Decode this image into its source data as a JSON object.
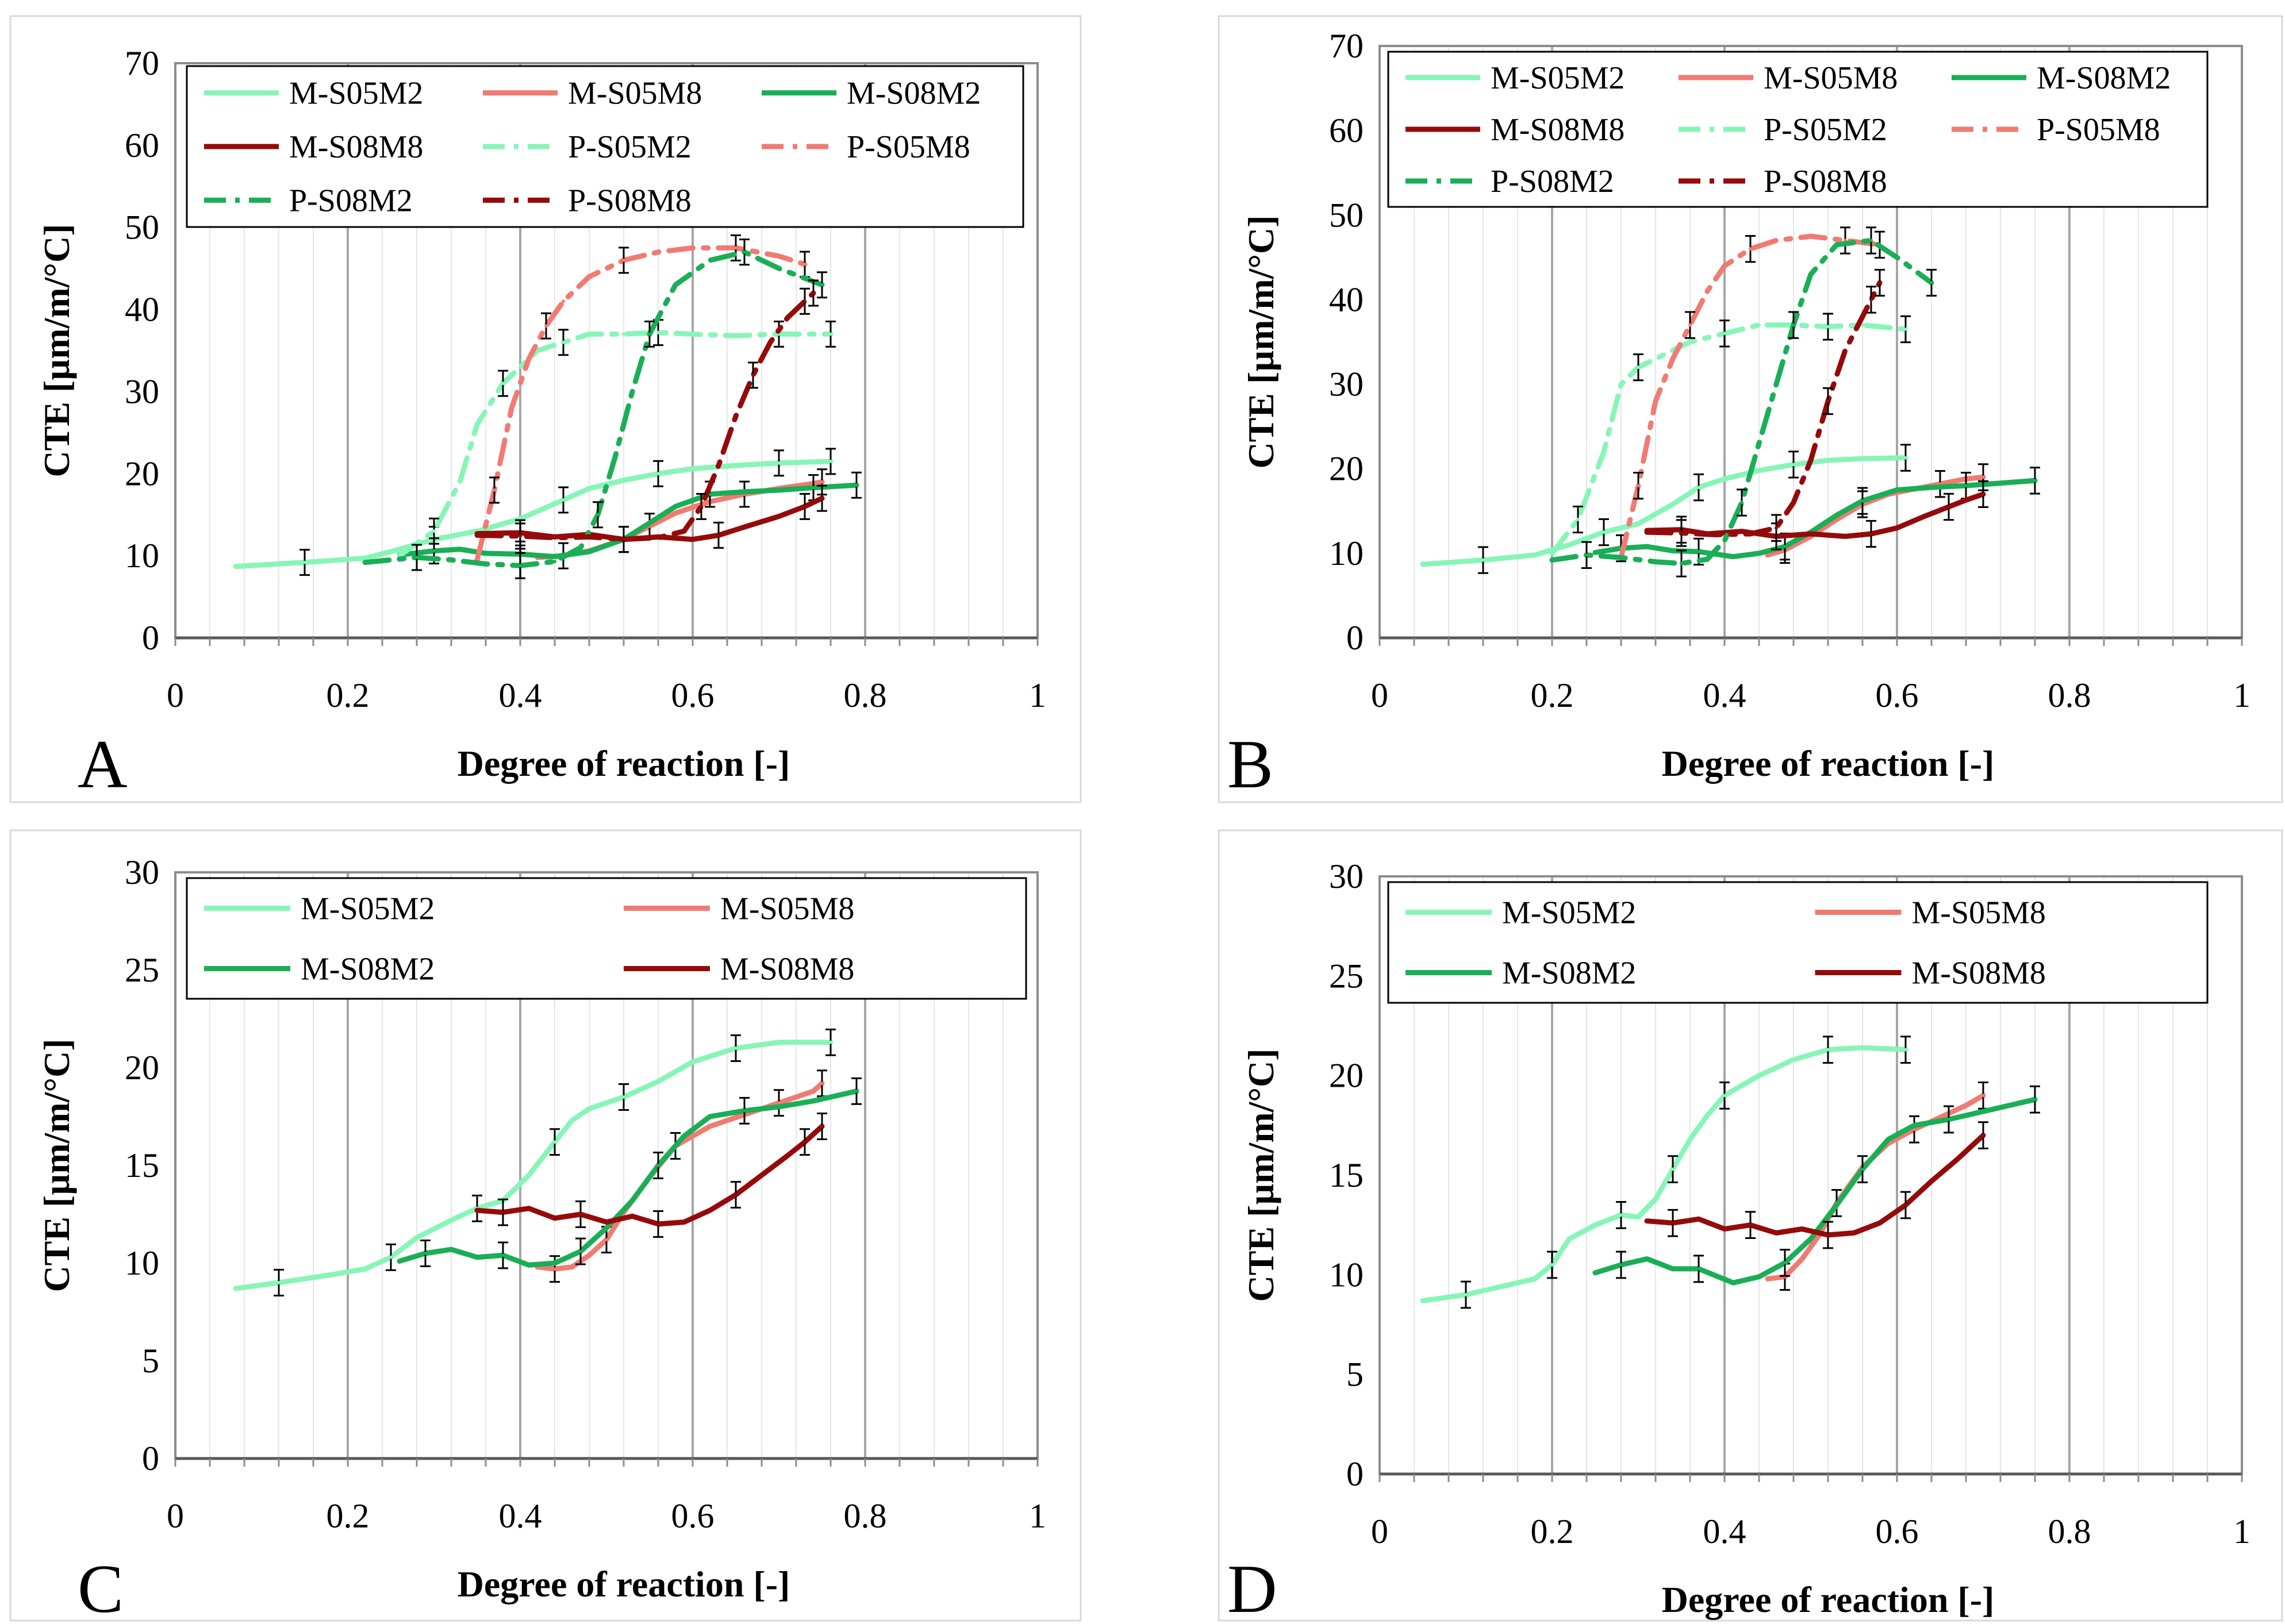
{
  "figure_title": "",
  "series_styles": {
    "M-S05M2": {
      "color": "#88F5B8",
      "dash": "solid"
    },
    "M-S05M8": {
      "color": "#F07B72",
      "dash": "solid"
    },
    "M-S08M2": {
      "color": "#1AAE56",
      "dash": "solid"
    },
    "M-S08M8": {
      "color": "#950A0A",
      "dash": "solid"
    },
    "P-S05M2": {
      "color": "#88F5B8",
      "dash": "dashdot"
    },
    "P-S05M8": {
      "color": "#F07B72",
      "dash": "dashdot"
    },
    "P-S08M2": {
      "color": "#1AAE56",
      "dash": "dashdot"
    },
    "P-S08M8": {
      "color": "#950A0A",
      "dash": "dashdot"
    }
  },
  "chart_data": [
    {
      "panel": "A",
      "type": "line",
      "xlabel": "Degree of reaction [-]",
      "ylabel": "CTE [µm/m/°C]",
      "xlim": [
        0,
        1
      ],
      "ylim": [
        0,
        70
      ],
      "x_ticks": [
        "0",
        "0.2",
        "0.4",
        "0.6",
        "0.8",
        "1"
      ],
      "y_ticks": [
        "0",
        "10",
        "20",
        "30",
        "40",
        "50",
        "60",
        "70"
      ],
      "legend": [
        "M-S05M2",
        "M-S05M8",
        "M-S08M2",
        "M-S08M8",
        "P-S05M2",
        "P-S05M8",
        "P-S08M2",
        "P-S08M8"
      ],
      "series": [
        {
          "name": "M-S05M2",
          "x": [
            0.07,
            0.15,
            0.22,
            0.25,
            0.3,
            0.35,
            0.4,
            0.45,
            0.48,
            0.52,
            0.56,
            0.6,
            0.65,
            0.7,
            0.76
          ],
          "y": [
            8.7,
            9.2,
            9.7,
            10.5,
            12.0,
            13.0,
            14.5,
            16.8,
            18.2,
            19.2,
            20.0,
            20.6,
            21.0,
            21.3,
            21.5
          ]
        },
        {
          "name": "M-S05M8",
          "x": [
            0.42,
            0.45,
            0.48,
            0.52,
            0.55,
            0.58,
            0.62,
            0.66,
            0.7,
            0.74,
            0.75
          ],
          "y": [
            9.8,
            10.0,
            10.6,
            12.0,
            13.6,
            15.2,
            16.6,
            17.5,
            18.2,
            18.8,
            19.0
          ]
        },
        {
          "name": "M-S08M2",
          "x": [
            0.26,
            0.3,
            0.33,
            0.36,
            0.4,
            0.44,
            0.48,
            0.52,
            0.55,
            0.58,
            0.62,
            0.66,
            0.7,
            0.74,
            0.79
          ],
          "y": [
            10.1,
            10.6,
            10.8,
            10.3,
            10.2,
            9.9,
            10.5,
            12.0,
            14.0,
            16.0,
            17.5,
            17.8,
            18.0,
            18.3,
            18.6
          ]
        },
        {
          "name": "M-S08M8",
          "x": [
            0.35,
            0.4,
            0.44,
            0.48,
            0.52,
            0.56,
            0.6,
            0.63,
            0.66,
            0.7,
            0.73,
            0.75
          ],
          "y": [
            12.7,
            12.8,
            12.3,
            12.6,
            12.0,
            12.3,
            12.0,
            12.5,
            13.5,
            14.8,
            16.0,
            17.0
          ]
        },
        {
          "name": "P-S05M2",
          "x": [
            0.26,
            0.3,
            0.33,
            0.35,
            0.38,
            0.4,
            0.42,
            0.45,
            0.48,
            0.52,
            0.56,
            0.6,
            0.65,
            0.7,
            0.76
          ],
          "y": [
            10.0,
            13.0,
            19.0,
            26.0,
            31.0,
            33.0,
            35.0,
            36.0,
            37.0,
            37.0,
            37.2,
            37.0,
            36.8,
            37.0,
            37.0
          ]
        },
        {
          "name": "P-S05M8",
          "x": [
            0.35,
            0.37,
            0.39,
            0.41,
            0.43,
            0.45,
            0.48,
            0.52,
            0.56,
            0.6,
            0.65,
            0.7,
            0.73
          ],
          "y": [
            9.5,
            18.0,
            28.0,
            34.0,
            38.0,
            41.0,
            44.0,
            46.0,
            47.0,
            47.5,
            47.5,
            46.5,
            45.5
          ]
        },
        {
          "name": "P-S08M2",
          "x": [
            0.22,
            0.28,
            0.32,
            0.36,
            0.4,
            0.44,
            0.47,
            0.49,
            0.51,
            0.53,
            0.55,
            0.58,
            0.62,
            0.66,
            0.7,
            0.75
          ],
          "y": [
            9.2,
            9.8,
            9.5,
            9.0,
            8.8,
            9.3,
            11.0,
            15.0,
            22.0,
            30.0,
            37.0,
            43.0,
            46.0,
            47.0,
            45.0,
            43.0
          ]
        },
        {
          "name": "P-S08M8",
          "x": [
            0.35,
            0.4,
            0.44,
            0.48,
            0.52,
            0.56,
            0.59,
            0.61,
            0.63,
            0.65,
            0.67,
            0.69,
            0.71,
            0.73,
            0.74
          ],
          "y": [
            12.5,
            12.4,
            12.2,
            12.3,
            12.0,
            12.2,
            13.0,
            16.0,
            21.0,
            27.0,
            32.0,
            36.0,
            39.0,
            41.0,
            42.0
          ]
        }
      ]
    },
    {
      "panel": "B",
      "type": "line",
      "xlabel": "Degree of reaction [-]",
      "ylabel": "CTE [µm/m/°C]",
      "xlim": [
        0,
        1
      ],
      "ylim": [
        0,
        70
      ],
      "x_ticks": [
        "0",
        "0.2",
        "0.4",
        "0.6",
        "0.8",
        "1"
      ],
      "y_ticks": [
        "0",
        "10",
        "20",
        "30",
        "40",
        "50",
        "60",
        "70"
      ],
      "legend": [
        "M-S05M2",
        "M-S05M8",
        "M-S08M2",
        "M-S08M8",
        "P-S05M2",
        "P-S05M8",
        "P-S08M2",
        "P-S08M8"
      ],
      "series": [
        {
          "name": "M-S05M2",
          "x": [
            0.05,
            0.12,
            0.18,
            0.22,
            0.26,
            0.3,
            0.34,
            0.37,
            0.4,
            0.44,
            0.48,
            0.52,
            0.56,
            0.61
          ],
          "y": [
            8.7,
            9.2,
            9.8,
            11.0,
            12.5,
            13.5,
            15.8,
            17.8,
            18.8,
            19.8,
            20.5,
            21.0,
            21.2,
            21.3
          ]
        },
        {
          "name": "M-S05M8",
          "x": [
            0.45,
            0.47,
            0.5,
            0.53,
            0.56,
            0.59,
            0.62,
            0.65,
            0.68,
            0.7
          ],
          "y": [
            9.8,
            10.4,
            12.0,
            14.0,
            15.8,
            17.0,
            17.6,
            18.2,
            18.8,
            19.0
          ]
        },
        {
          "name": "M-S08M2",
          "x": [
            0.25,
            0.28,
            0.31,
            0.34,
            0.37,
            0.41,
            0.44,
            0.47,
            0.5,
            0.53,
            0.56,
            0.6,
            0.64,
            0.68,
            0.72,
            0.76
          ],
          "y": [
            10.1,
            10.6,
            10.8,
            10.3,
            10.2,
            9.6,
            10.0,
            10.8,
            12.5,
            14.5,
            16.2,
            17.5,
            17.8,
            18.0,
            18.3,
            18.6
          ]
        },
        {
          "name": "M-S08M8",
          "x": [
            0.31,
            0.35,
            0.38,
            0.42,
            0.46,
            0.5,
            0.54,
            0.57,
            0.6,
            0.63,
            0.66,
            0.68,
            0.7
          ],
          "y": [
            12.7,
            12.8,
            12.3,
            12.6,
            12.0,
            12.3,
            12.0,
            12.3,
            13.0,
            14.3,
            15.5,
            16.3,
            17.0
          ]
        },
        {
          "name": "P-S05M2",
          "x": [
            0.2,
            0.23,
            0.26,
            0.28,
            0.3,
            0.33,
            0.36,
            0.4,
            0.44,
            0.48,
            0.52,
            0.56,
            0.61
          ],
          "y": [
            10.0,
            14.0,
            22.0,
            30.0,
            32.0,
            33.5,
            35.0,
            36.0,
            37.0,
            37.0,
            36.8,
            37.0,
            36.5
          ]
        },
        {
          "name": "P-S05M8",
          "x": [
            0.28,
            0.3,
            0.32,
            0.34,
            0.36,
            0.38,
            0.4,
            0.43,
            0.46,
            0.5,
            0.54,
            0.58
          ],
          "y": [
            9.5,
            18.0,
            28.0,
            33.0,
            37.0,
            41.0,
            44.0,
            46.0,
            47.0,
            47.5,
            47.0,
            46.5
          ]
        },
        {
          "name": "P-S08M2",
          "x": [
            0.2,
            0.24,
            0.28,
            0.32,
            0.35,
            0.38,
            0.4,
            0.42,
            0.44,
            0.46,
            0.48,
            0.5,
            0.53,
            0.57,
            0.6,
            0.64
          ],
          "y": [
            9.2,
            9.8,
            9.5,
            9.0,
            8.8,
            9.3,
            11.5,
            16.0,
            23.0,
            30.0,
            37.0,
            43.0,
            46.5,
            47.0,
            45.0,
            42.0
          ]
        },
        {
          "name": "P-S08M8",
          "x": [
            0.31,
            0.35,
            0.39,
            0.43,
            0.46,
            0.48,
            0.5,
            0.52,
            0.54,
            0.56,
            0.57,
            0.58
          ],
          "y": [
            12.5,
            12.4,
            12.2,
            12.3,
            13.0,
            16.0,
            21.0,
            28.0,
            34.0,
            38.0,
            40.0,
            42.0
          ]
        }
      ]
    },
    {
      "panel": "C",
      "type": "line",
      "xlabel": "Degree of reaction [-]",
      "ylabel": "CTE [µm/m/°C]",
      "xlim": [
        0,
        1
      ],
      "ylim": [
        0,
        30
      ],
      "x_ticks": [
        "0",
        "0.2",
        "0.4",
        "0.6",
        "0.8",
        "1"
      ],
      "y_ticks": [
        "0",
        "5",
        "10",
        "15",
        "20",
        "25",
        "30"
      ],
      "legend": [
        "M-S05M2",
        "M-S05M8",
        "M-S08M2",
        "M-S08M8"
      ],
      "series": [
        {
          "name": "M-S05M2",
          "x": [
            0.07,
            0.12,
            0.18,
            0.22,
            0.25,
            0.28,
            0.32,
            0.35,
            0.38,
            0.41,
            0.44,
            0.46,
            0.48,
            0.52,
            0.56,
            0.6,
            0.65,
            0.7,
            0.76
          ],
          "y": [
            8.7,
            9.0,
            9.4,
            9.7,
            10.3,
            11.3,
            12.2,
            12.8,
            13.2,
            14.5,
            16.2,
            17.3,
            17.9,
            18.5,
            19.3,
            20.3,
            21.0,
            21.3,
            21.3
          ]
        },
        {
          "name": "M-S05M8",
          "x": [
            0.42,
            0.44,
            0.46,
            0.48,
            0.5,
            0.52,
            0.55,
            0.58,
            0.62,
            0.66,
            0.7,
            0.74,
            0.75
          ],
          "y": [
            9.8,
            9.7,
            9.8,
            10.4,
            11.2,
            12.6,
            14.4,
            16.0,
            17.0,
            17.6,
            18.2,
            18.8,
            19.2
          ]
        },
        {
          "name": "M-S08M2",
          "x": [
            0.26,
            0.29,
            0.32,
            0.35,
            0.38,
            0.41,
            0.44,
            0.47,
            0.5,
            0.53,
            0.56,
            0.59,
            0.62,
            0.66,
            0.7,
            0.74,
            0.79
          ],
          "y": [
            10.1,
            10.5,
            10.7,
            10.3,
            10.4,
            9.9,
            10.0,
            10.6,
            11.8,
            13.2,
            15.0,
            16.5,
            17.5,
            17.8,
            18.0,
            18.3,
            18.8
          ]
        },
        {
          "name": "M-S08M8",
          "x": [
            0.35,
            0.38,
            0.41,
            0.44,
            0.47,
            0.5,
            0.53,
            0.56,
            0.59,
            0.62,
            0.65,
            0.68,
            0.71,
            0.73,
            0.75
          ],
          "y": [
            12.7,
            12.6,
            12.8,
            12.3,
            12.5,
            12.1,
            12.4,
            12.0,
            12.1,
            12.7,
            13.5,
            14.5,
            15.5,
            16.2,
            17.0
          ]
        }
      ]
    },
    {
      "panel": "D",
      "type": "line",
      "xlabel": "Degree of reaction [-]",
      "ylabel": "CTE [µm/m/°C]",
      "xlim": [
        0,
        1
      ],
      "ylim": [
        0,
        30
      ],
      "x_ticks": [
        "0",
        "0.2",
        "0.4",
        "0.6",
        "0.8",
        "1"
      ],
      "y_ticks": [
        "0",
        "5",
        "10",
        "15",
        "20",
        "25",
        "30"
      ],
      "legend": [
        "M-S05M2",
        "M-S05M8",
        "M-S08M2",
        "M-S08M8"
      ],
      "series": [
        {
          "name": "M-S05M2",
          "x": [
            0.05,
            0.1,
            0.15,
            0.18,
            0.2,
            0.22,
            0.25,
            0.28,
            0.3,
            0.32,
            0.34,
            0.36,
            0.38,
            0.4,
            0.44,
            0.48,
            0.52,
            0.56,
            0.61
          ],
          "y": [
            8.7,
            9.0,
            9.5,
            9.8,
            10.5,
            11.8,
            12.5,
            13.0,
            12.9,
            13.8,
            15.3,
            16.8,
            18.0,
            19.0,
            20.0,
            20.8,
            21.3,
            21.4,
            21.3
          ]
        },
        {
          "name": "M-S05M8",
          "x": [
            0.45,
            0.47,
            0.49,
            0.51,
            0.53,
            0.56,
            0.59,
            0.62,
            0.65,
            0.68,
            0.7
          ],
          "y": [
            9.8,
            9.9,
            10.8,
            12.0,
            13.6,
            15.4,
            16.6,
            17.3,
            17.9,
            18.5,
            19.0
          ]
        },
        {
          "name": "M-S08M2",
          "x": [
            0.25,
            0.28,
            0.31,
            0.34,
            0.37,
            0.41,
            0.44,
            0.47,
            0.5,
            0.53,
            0.56,
            0.59,
            0.62,
            0.66,
            0.7,
            0.76
          ],
          "y": [
            10.1,
            10.5,
            10.8,
            10.3,
            10.3,
            9.6,
            9.9,
            10.6,
            11.8,
            13.5,
            15.3,
            16.8,
            17.5,
            17.8,
            18.2,
            18.8
          ]
        },
        {
          "name": "M-S08M8",
          "x": [
            0.31,
            0.34,
            0.37,
            0.4,
            0.43,
            0.46,
            0.49,
            0.52,
            0.55,
            0.58,
            0.61,
            0.64,
            0.67,
            0.7
          ],
          "y": [
            12.7,
            12.6,
            12.8,
            12.3,
            12.5,
            12.1,
            12.3,
            12.0,
            12.1,
            12.6,
            13.5,
            14.7,
            15.8,
            17.0
          ]
        }
      ]
    }
  ]
}
